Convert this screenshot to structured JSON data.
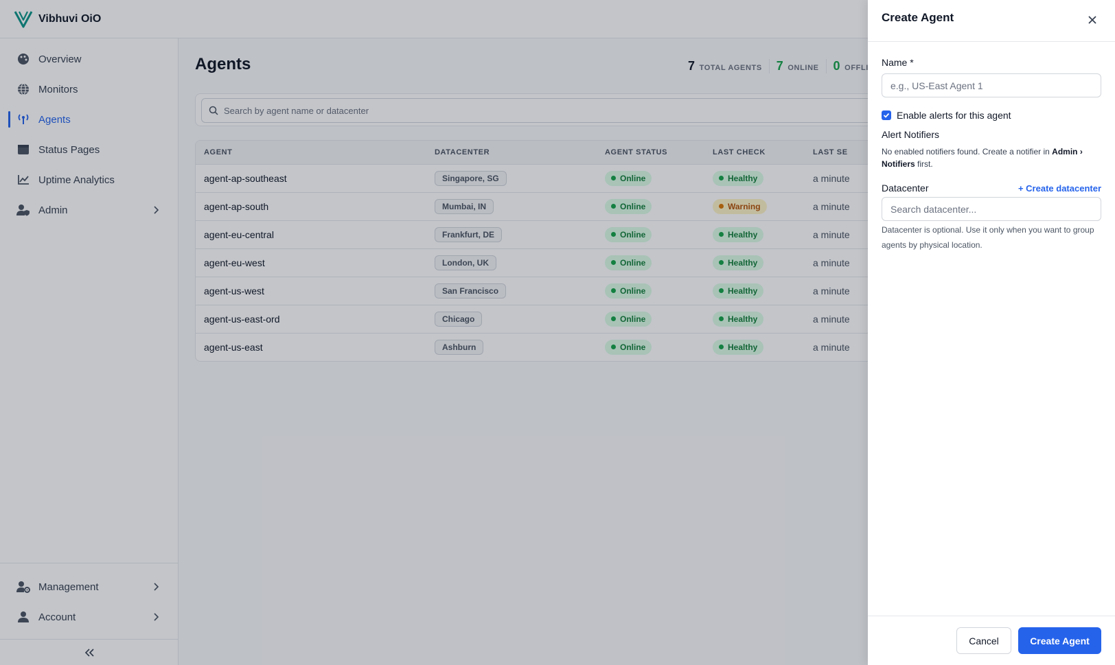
{
  "app": {
    "brand": "Vibhuvi OiO"
  },
  "sidebar": {
    "items": [
      {
        "label": "Overview",
        "icon": "palette-icon"
      },
      {
        "label": "Monitors",
        "icon": "globe-icon"
      },
      {
        "label": "Agents",
        "icon": "antenna-icon",
        "active": true
      },
      {
        "label": "Status Pages",
        "icon": "window-icon"
      },
      {
        "label": "Uptime Analytics",
        "icon": "chart-line-icon"
      },
      {
        "label": "Admin",
        "icon": "user-shield-icon"
      }
    ],
    "bottom": [
      {
        "label": "Management",
        "icon": "user-gear-icon"
      },
      {
        "label": "Account",
        "icon": "user-icon"
      }
    ]
  },
  "main": {
    "title": "Agents",
    "stats": [
      {
        "num": "7",
        "label": "TOTAL AGENTS"
      },
      {
        "num": "7",
        "label": "ONLINE"
      },
      {
        "num": "0",
        "label": "OFFLI"
      }
    ],
    "search": {
      "placeholder": "Search by agent name or datacenter"
    },
    "table": {
      "headers": [
        "AGENT",
        "DATACENTER",
        "AGENT STATUS",
        "LAST CHECK",
        "LAST SE"
      ],
      "rows": [
        {
          "agent": "agent-ap-southeast",
          "datacenter": "Singapore, SG",
          "status": "Online",
          "check": "Healthy",
          "last_seen": "a minute"
        },
        {
          "agent": "agent-ap-south",
          "datacenter": "Mumbai, IN",
          "status": "Online",
          "check": "Warning",
          "last_seen": "a minute"
        },
        {
          "agent": "agent-eu-central",
          "datacenter": "Frankfurt, DE",
          "status": "Online",
          "check": "Healthy",
          "last_seen": "a minute"
        },
        {
          "agent": "agent-eu-west",
          "datacenter": "London, UK",
          "status": "Online",
          "check": "Healthy",
          "last_seen": "a minute"
        },
        {
          "agent": "agent-us-west",
          "datacenter": "San Francisco",
          "status": "Online",
          "check": "Healthy",
          "last_seen": "a minute"
        },
        {
          "agent": "agent-us-east-ord",
          "datacenter": "Chicago",
          "status": "Online",
          "check": "Healthy",
          "last_seen": "a minute"
        },
        {
          "agent": "agent-us-east",
          "datacenter": "Ashburn",
          "status": "Online",
          "check": "Healthy",
          "last_seen": "a minute"
        }
      ]
    }
  },
  "drawer": {
    "title": "Create Agent",
    "name_label": "Name *",
    "name_placeholder": "e.g., US-East Agent 1",
    "alerts_label": "Enable alerts for this agent",
    "alerts_checked": true,
    "notifiers_label": "Alert Notifiers",
    "notifiers_note_pre": "No enabled notifiers found. Create a notifier in ",
    "notifiers_note_bold": "Admin › Notifiers",
    "notifiers_note_post": " first.",
    "datacenter_label": "Datacenter",
    "create_datacenter_link": "+ Create datacenter",
    "datacenter_placeholder": "Search datacenter...",
    "datacenter_help": "Datacenter is optional. Use it only when you want to group agents by physical location.",
    "cancel_label": "Cancel",
    "submit_label": "Create Agent"
  },
  "colors": {
    "accent": "#2563eb",
    "online": "#16a34a",
    "warning": "#d97706"
  }
}
